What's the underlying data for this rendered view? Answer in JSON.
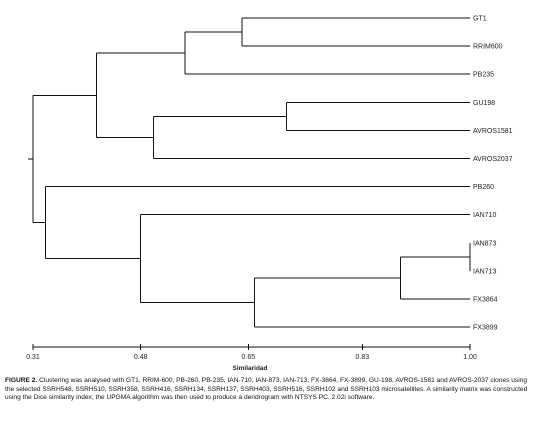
{
  "dendrogram": {
    "leaves": [
      {
        "name": "GT1",
        "order": 0
      },
      {
        "name": "RRIM600",
        "order": 1
      },
      {
        "name": "PB235",
        "order": 2
      },
      {
        "name": "GU198",
        "order": 3
      },
      {
        "name": "AVROS1581",
        "order": 4
      },
      {
        "name": "AVROS2037",
        "order": 5
      },
      {
        "name": "PB260",
        "order": 6
      },
      {
        "name": "IAN710",
        "order": 7
      },
      {
        "name": "IAN873",
        "order": 8
      },
      {
        "name": "IAN713",
        "order": 9
      },
      {
        "name": "FX3864",
        "order": 10
      },
      {
        "name": "FX3899",
        "order": 11
      }
    ],
    "merges": [
      {
        "id": "m1",
        "left": "IAN873",
        "right": "IAN713",
        "height": 1.0
      },
      {
        "id": "m2",
        "left": "GT1",
        "right": "RRIM600",
        "height": 0.64
      },
      {
        "id": "m3",
        "left": "GU198",
        "right": "AVROS1581",
        "height": 0.71
      },
      {
        "id": "m4",
        "left": "m1",
        "right": "FX3864",
        "height": 0.89
      },
      {
        "id": "m5",
        "left": "m2",
        "right": "PB235",
        "height": 0.55
      },
      {
        "id": "m6",
        "left": "m3",
        "right": "AVROS2037",
        "height": 0.5
      },
      {
        "id": "m7",
        "left": "m4",
        "right": "FX3899",
        "height": 0.66
      },
      {
        "id": "m8",
        "left": "m5",
        "right": "m6",
        "height": 0.41
      },
      {
        "id": "m9",
        "left": "IAN710",
        "right": "m7",
        "height": 0.48
      },
      {
        "id": "m10",
        "left": "PB260",
        "right": "m9",
        "height": 0.33
      },
      {
        "id": "m11",
        "left": "m8",
        "right": "m10",
        "height": 0.31
      }
    ],
    "axis": {
      "ticks": [
        "0.31",
        "0.48",
        "0.65",
        "0.83",
        "1.00"
      ],
      "range": [
        0.31,
        1.0
      ],
      "title": "Similaridad"
    }
  },
  "caption": {
    "label": "FIGURE 2.",
    "text": "Clustering was analysed with GT1, RRIM-600, PB-260, PB-235, IAN-710, IAN-873, IAN-713, FX-3864, FX-3899, GU-198, AVROS-1581 and AVROS-2037 clones using the selected SSRH548, SSRH510, SSRH358, SSRH416, SSRH134, SSRH137, SSRH403, SSRH516, SSRH102 and SSRH103 microsatellites. A similarity matrix was constructed using the Dice similarity index; the UPGMA algorithm was then used to produce a dendrogram with NTSYS PC. 2.02i software."
  }
}
